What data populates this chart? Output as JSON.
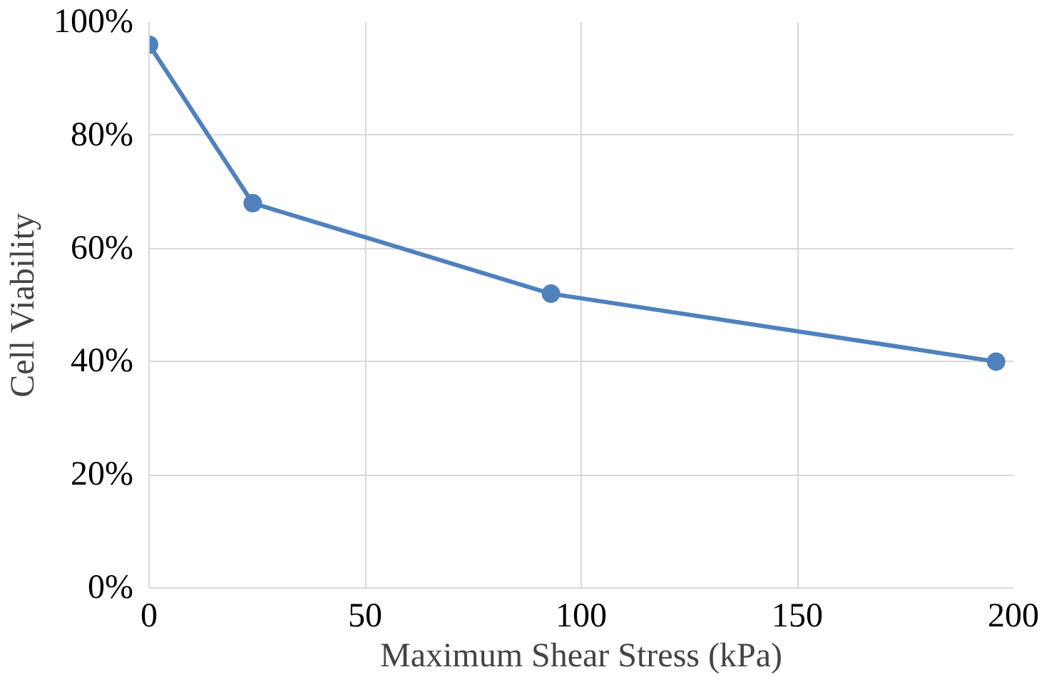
{
  "chart_data": {
    "type": "line",
    "xlabel": "Maximum Shear Stress (kPa)",
    "ylabel": "Cell Viability",
    "x": [
      0,
      24,
      93,
      196
    ],
    "series": [
      {
        "color": "#4f81bd",
        "values": [
          96,
          68,
          52,
          40
        ]
      }
    ],
    "xlim": [
      0,
      200
    ],
    "xticks": [
      0,
      50,
      100,
      150,
      200
    ],
    "ylim": [
      0,
      100
    ],
    "yticks": [
      {
        "value": 0,
        "label": "0%"
      },
      {
        "value": 20,
        "label": "20%"
      },
      {
        "value": 40,
        "label": "40%"
      },
      {
        "value": 60,
        "label": "60%"
      },
      {
        "value": 80,
        "label": "80%"
      },
      {
        "value": 100,
        "label": "100%"
      }
    ],
    "grid": true,
    "marker": "circle",
    "line_style": "solid"
  }
}
